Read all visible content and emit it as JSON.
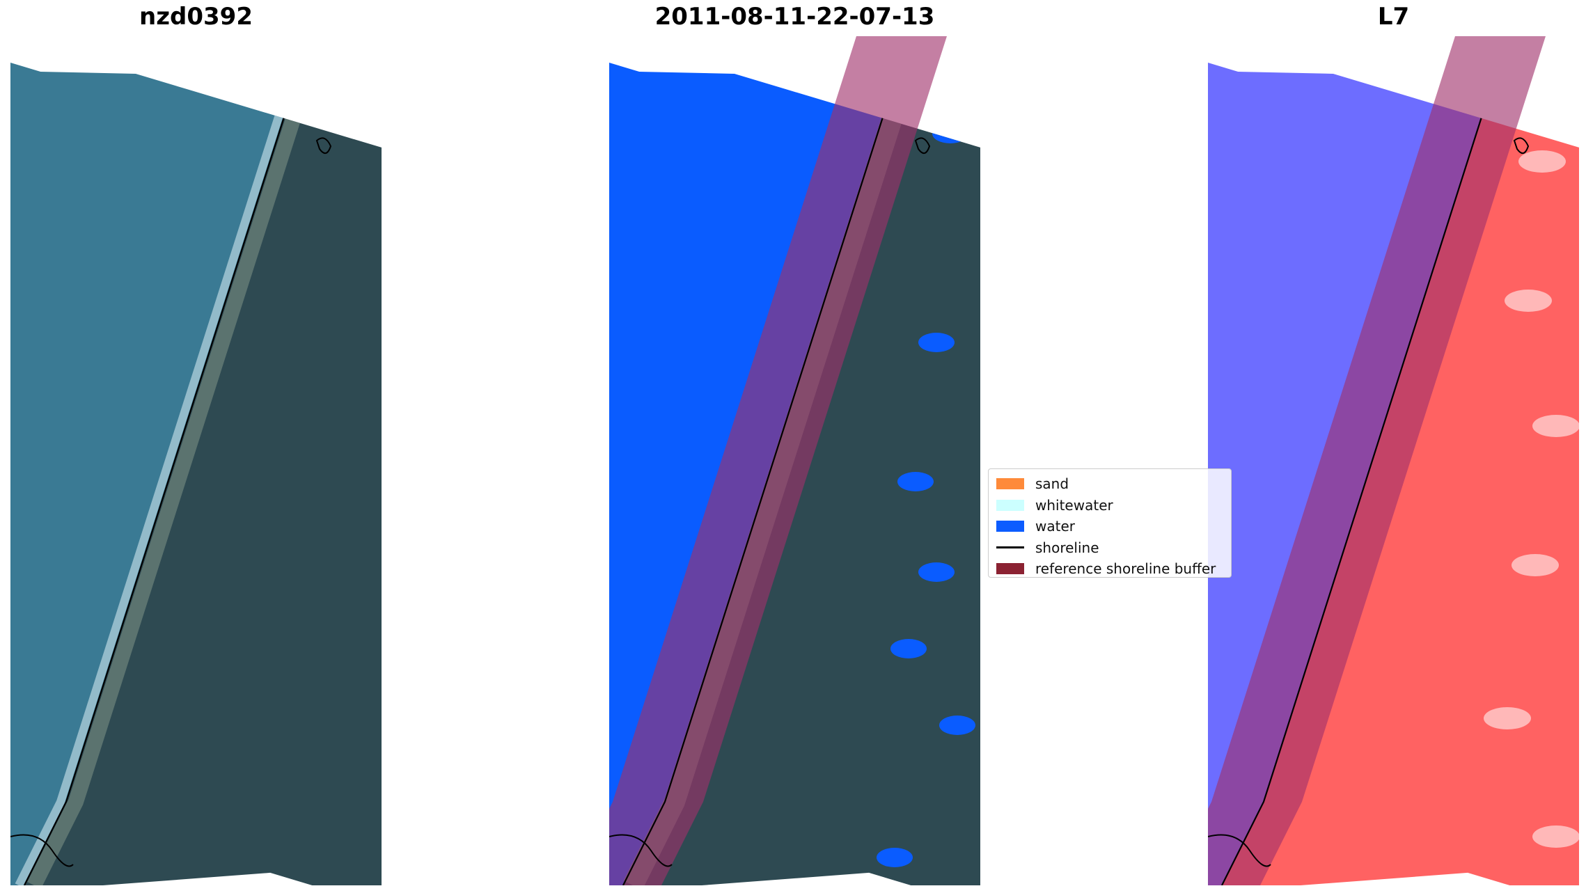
{
  "panels": [
    {
      "title": "nzd0392",
      "type": "rgb"
    },
    {
      "title": "2011-08-11-22-07-13",
      "type": "classified"
    },
    {
      "title": "L7",
      "type": "index"
    }
  ],
  "legend": {
    "items": [
      {
        "label": "sand",
        "kind": "patch",
        "color": "#fe8a3a"
      },
      {
        "label": "whitewater",
        "kind": "patch",
        "color": "#ccffff"
      },
      {
        "label": "water",
        "kind": "patch",
        "color": "#0c5cff"
      },
      {
        "label": "shoreline",
        "kind": "line",
        "color": "#000000"
      },
      {
        "label": "reference shoreline buffer",
        "kind": "patch",
        "color": "#8b2232"
      }
    ]
  },
  "colors": {
    "sea": "#3a7a94",
    "land": "#2e4a52",
    "water_class": "#0a5cff",
    "buffer": "#a0306a",
    "index_water": "#3c3cff",
    "index_land": "#ff2020"
  }
}
